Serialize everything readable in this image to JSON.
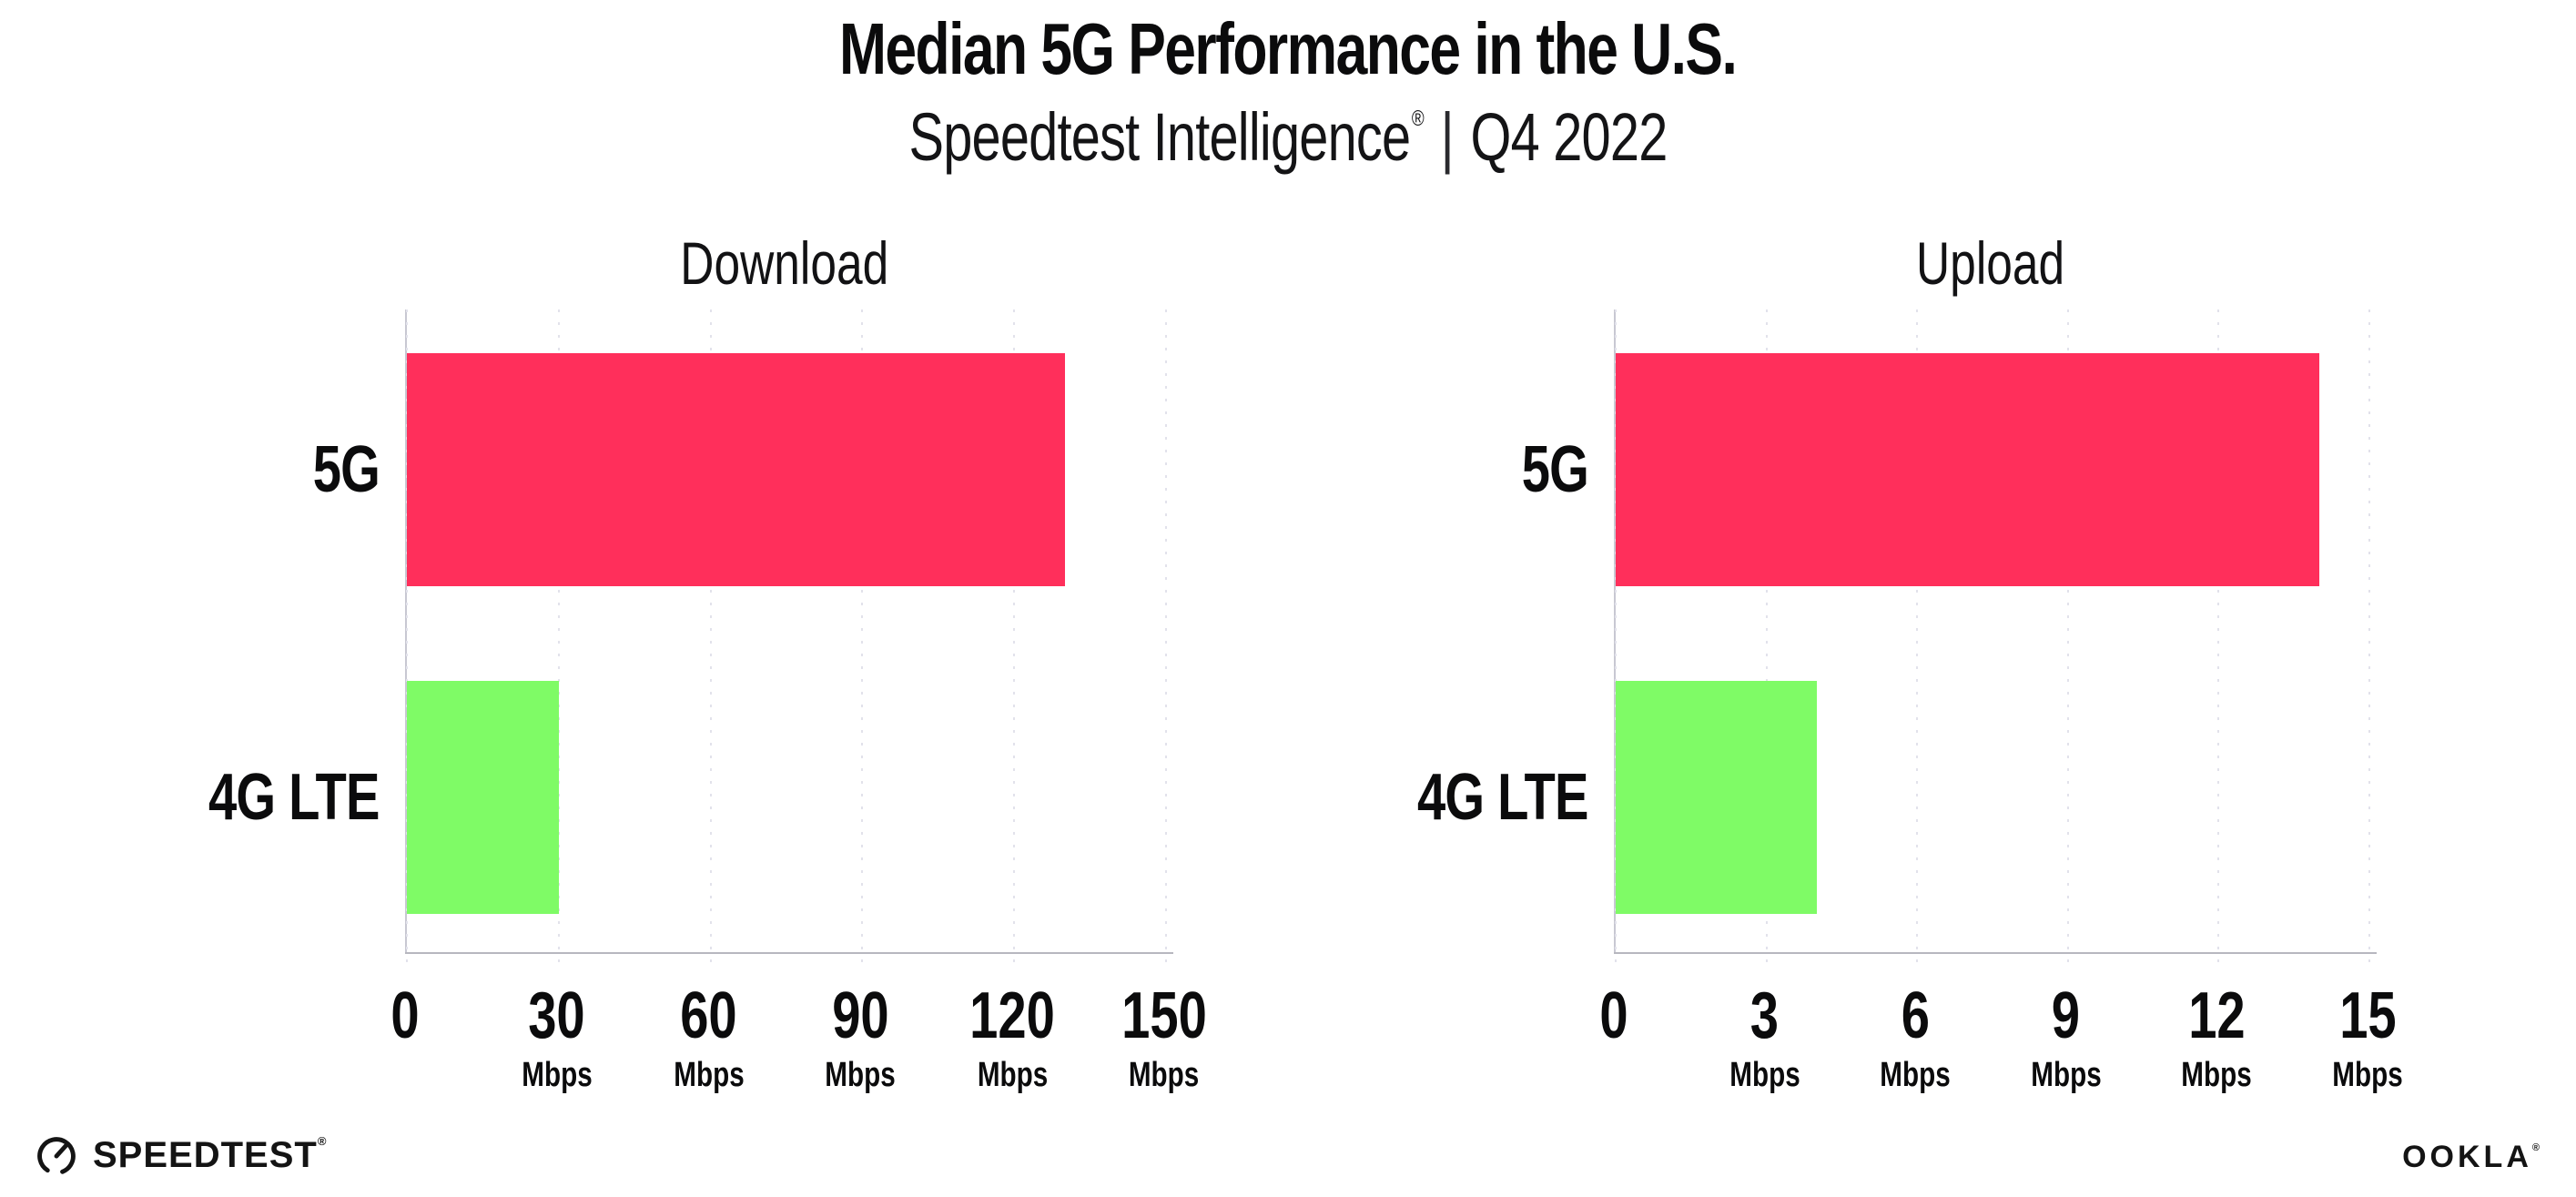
{
  "title": "Median 5G Performance in the U.S.",
  "subtitle": {
    "product": "Speedtest Intelligence",
    "registered": "®",
    "divider": "|",
    "period": "Q4 2022"
  },
  "colors": {
    "bar_5g": "#FF2F5B",
    "bar_4g_lte": "#7FFB66",
    "gridline": "#E2E2EB",
    "x_axis_line": "#B7B7BF",
    "y_axis_line": "#C8C8D2",
    "text": "#0B0B0C",
    "background": "#FFFFFF"
  },
  "chart_data": [
    {
      "type": "bar",
      "orientation": "horizontal",
      "title": "Download",
      "categories": [
        "5G",
        "4G LTE"
      ],
      "values": [
        130,
        30
      ],
      "unit": "Mbps",
      "xlim": [
        0,
        150
      ],
      "xticks": [
        0,
        30,
        60,
        90,
        120,
        150
      ],
      "grid": "vertical-dotted",
      "legend": "none",
      "bar_colors": [
        "#FF2F5B",
        "#7FFB66"
      ]
    },
    {
      "type": "bar",
      "orientation": "horizontal",
      "title": "Upload",
      "categories": [
        "5G",
        "4G LTE"
      ],
      "values": [
        14,
        4
      ],
      "unit": "Mbps",
      "xlim": [
        0,
        15
      ],
      "xticks": [
        0,
        3,
        6,
        9,
        12,
        15
      ],
      "grid": "vertical-dotted",
      "legend": "none",
      "bar_colors": [
        "#FF2F5B",
        "#7FFB66"
      ]
    }
  ],
  "footer": {
    "speedtest_logo_text": "SPEEDTEST",
    "speedtest_trademark": "®",
    "ookla_logo_text": "OOKLA",
    "ookla_trademark": "®"
  }
}
